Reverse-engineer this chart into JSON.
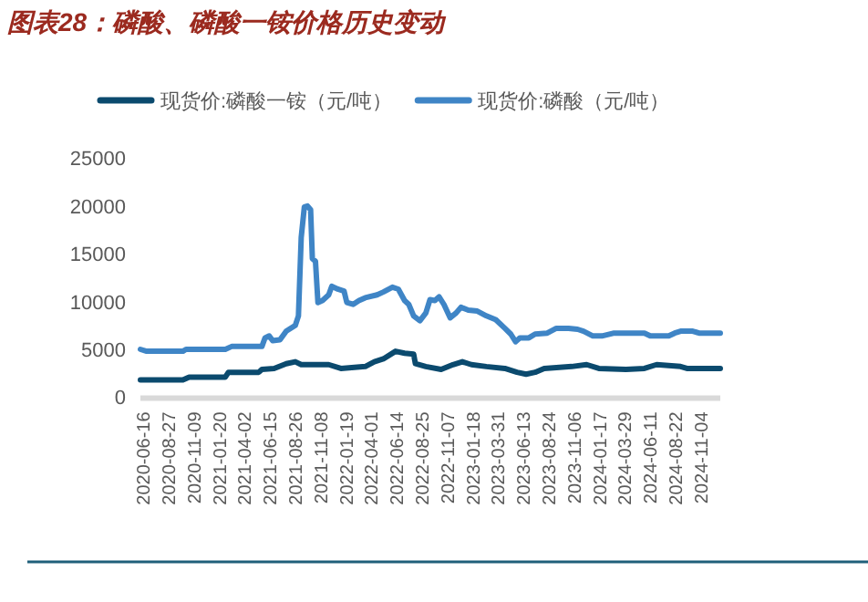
{
  "chart_data": {
    "type": "line",
    "title": "图表28：磷酸、磷酸一铵价格历史变动",
    "series": [
      {
        "name": "现货价:磷酸一铵（元/吨）",
        "color": "#0b4a6e",
        "x": [
          "2020-06-07",
          "2020-10-07",
          "2020-10-25",
          "2021-02-06",
          "2021-02-15",
          "2021-05-13",
          "2021-05-22",
          "2021-06-26",
          "2021-07-31",
          "2021-08-26",
          "2021-09-12",
          "2021-11-30",
          "2022-01-04",
          "2022-03-15",
          "2022-04-10",
          "2022-05-06",
          "2022-06-10",
          "2022-07-06",
          "2022-08-01",
          "2022-08-06",
          "2022-09-05",
          "2022-10-19",
          "2022-11-22",
          "2022-12-19",
          "2023-01-14",
          "2023-02-26",
          "2023-04-20",
          "2023-05-25",
          "2023-06-20",
          "2023-07-16",
          "2023-08-11",
          "2023-10-29",
          "2023-12-11",
          "2024-01-15",
          "2024-04-02",
          "2024-05-25",
          "2024-06-29",
          "2024-09-06",
          "2024-09-24",
          "2024-12-29"
        ],
        "values": [
          1800,
          1800,
          2100,
          2100,
          2600,
          2600,
          2900,
          3000,
          3500,
          3700,
          3400,
          3400,
          3000,
          3200,
          3700,
          4000,
          4800,
          4600,
          4500,
          3500,
          3200,
          2900,
          3400,
          3700,
          3400,
          3200,
          3000,
          2600,
          2400,
          2600,
          3000,
          3200,
          3400,
          3000,
          2900,
          3000,
          3400,
          3200,
          3000,
          3000
        ]
      },
      {
        "name": "现货价:磷酸（元/吨）",
        "color": "#3f85c6",
        "x": [
          "2020-06-07",
          "2020-06-25",
          "2020-10-07",
          "2020-10-16",
          "2021-02-06",
          "2021-02-24",
          "2021-05-22",
          "2021-05-31",
          "2021-06-12",
          "2021-06-22",
          "2021-07-13",
          "2021-07-31",
          "2021-08-26",
          "2021-09-04",
          "2021-09-12",
          "2021-09-21",
          "2021-09-30",
          "2021-10-09",
          "2021-10-14",
          "2021-10-23",
          "2021-10-30",
          "2021-11-12",
          "2021-11-30",
          "2021-12-09",
          "2021-12-26",
          "2022-01-13",
          "2022-01-21",
          "2022-02-08",
          "2022-02-25",
          "2022-03-15",
          "2022-04-18",
          "2022-05-06",
          "2022-06-01",
          "2022-06-18",
          "2022-07-06",
          "2022-07-18",
          "2022-08-01",
          "2022-08-19",
          "2022-09-05",
          "2022-09-17",
          "2022-10-01",
          "2022-10-13",
          "2022-10-27",
          "2022-11-14",
          "2022-12-01",
          "2022-12-15",
          "2023-01-05",
          "2023-01-31",
          "2023-02-26",
          "2023-03-25",
          "2023-04-20",
          "2023-05-07",
          "2023-05-21",
          "2023-06-02",
          "2023-06-28",
          "2023-07-16",
          "2023-08-20",
          "2023-09-15",
          "2023-10-20",
          "2023-11-15",
          "2023-12-02",
          "2023-12-29",
          "2024-01-24",
          "2024-02-28",
          "2024-05-25",
          "2024-06-11",
          "2024-08-03",
          "2024-08-20",
          "2024-09-06",
          "2024-10-11",
          "2024-10-29",
          "2024-12-29"
        ],
        "values": [
          5000,
          4800,
          4800,
          5000,
          5000,
          5300,
          5300,
          6200,
          6400,
          5900,
          6000,
          6900,
          7500,
          8500,
          16700,
          19900,
          20000,
          19600,
          14500,
          14200,
          9900,
          10100,
          10700,
          11600,
          11300,
          11100,
          9900,
          9700,
          10100,
          10400,
          10700,
          11000,
          11500,
          11300,
          10100,
          9700,
          8500,
          8000,
          8800,
          10200,
          10100,
          10500,
          9700,
          8300,
          8800,
          9400,
          9100,
          9000,
          8500,
          8100,
          7200,
          6600,
          5800,
          6200,
          6200,
          6600,
          6700,
          7200,
          7200,
          7100,
          6900,
          6400,
          6400,
          6700,
          6700,
          6400,
          6400,
          6700,
          6900,
          6900,
          6700,
          6700
        ]
      }
    ],
    "xlim": [
      "2020-06-07",
      "2024-12-29"
    ],
    "xticks": [
      "2020-06-16",
      "2020-08-27",
      "2020-11-09",
      "2021-01-20",
      "2021-04-02",
      "2021-06-15",
      "2021-08-26",
      "2021-11-08",
      "2022-01-19",
      "2022-04-01",
      "2022-06-14",
      "2022-08-25",
      "2022-11-07",
      "2023-01-18",
      "2023-03-31",
      "2023-06-13",
      "2023-08-24",
      "2023-11-06",
      "2024-01-17",
      "2024-03-29",
      "2024-06-11",
      "2024-08-22",
      "2024-11-04"
    ],
    "ylim": [
      0,
      25000
    ],
    "yticks": [
      0,
      5000,
      10000,
      15000,
      20000,
      25000
    ],
    "legend": "top",
    "grid": false
  }
}
